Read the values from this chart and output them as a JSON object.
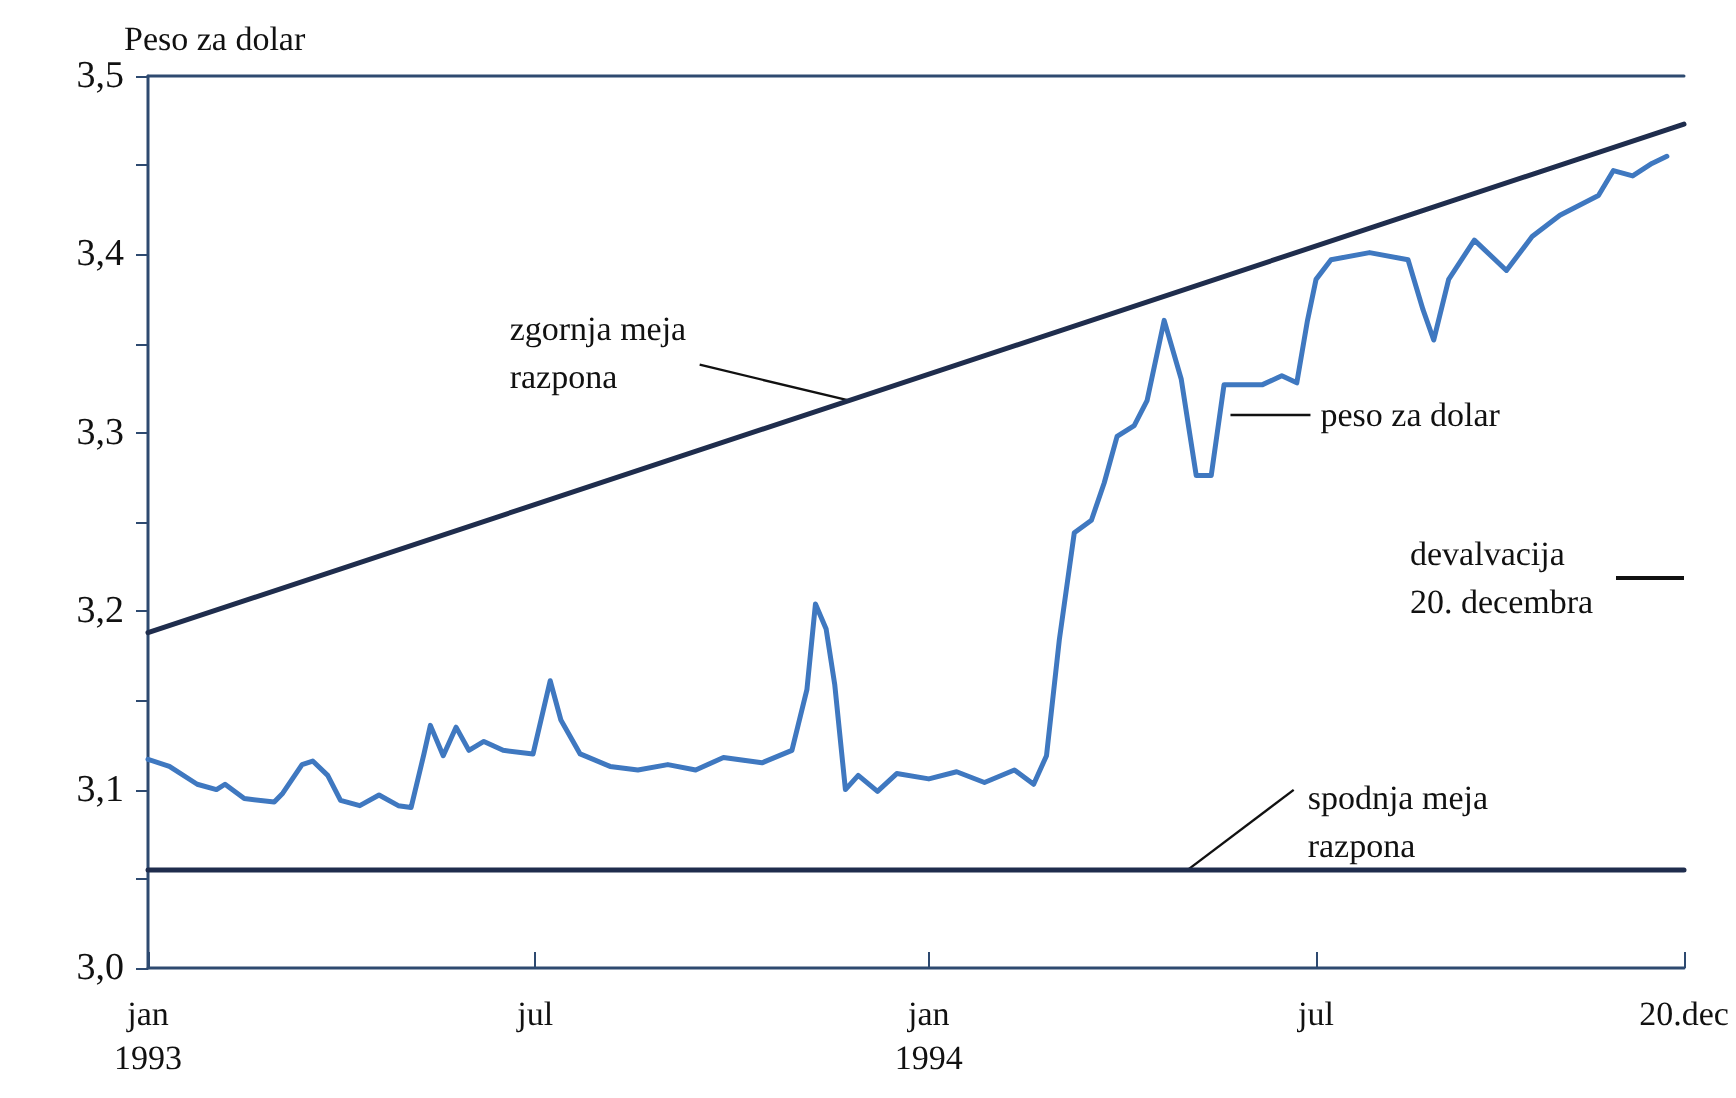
{
  "chart_data": {
    "type": "line",
    "ylabel": "Peso za dolar",
    "xlim": [
      "1993-01-01",
      "1994-12-20"
    ],
    "xticks": [
      {
        "value": "1993-01-01",
        "label": "jan\n1993"
      },
      {
        "value": "1993-07-01",
        "label": "jul"
      },
      {
        "value": "1994-01-01",
        "label": "jan\n1994"
      },
      {
        "value": "1994-07-01",
        "label": "jul"
      },
      {
        "value": "1994-12-20",
        "label": "20.dec"
      }
    ],
    "ylim": [
      3.0,
      3.5
    ],
    "yticks": [
      {
        "value": 3.0,
        "label": "3,0"
      },
      {
        "value": 3.05,
        "label": null
      },
      {
        "value": 3.1,
        "label": "3,1"
      },
      {
        "value": 3.15,
        "label": null
      },
      {
        "value": 3.2,
        "label": "3,2"
      },
      {
        "value": 3.25,
        "label": null
      },
      {
        "value": 3.3,
        "label": "3,3"
      },
      {
        "value": 3.35,
        "label": null
      },
      {
        "value": 3.4,
        "label": "3,4"
      },
      {
        "value": 3.45,
        "label": null
      },
      {
        "value": 3.5,
        "label": "3,5"
      }
    ],
    "series": [
      {
        "color": "#1f2d4d",
        "x": [
          "1993-01-01",
          "1994-12-20"
        ],
        "values": [
          3.188,
          3.473
        ]
      },
      {
        "color": "#1f2d4d",
        "x": [
          "1993-01-01",
          "1994-12-20"
        ],
        "values": [
          3.055,
          3.055
        ]
      },
      {
        "color": "#3f78c0",
        "x": [
          "1993-01-01",
          "1993-01-11",
          "1993-01-24",
          "1993-02-02",
          "1993-02-06",
          "1993-02-15",
          "1993-03-01",
          "1993-03-05",
          "1993-03-14",
          "1993-03-19",
          "1993-03-26",
          "1993-04-01",
          "1993-04-10",
          "1993-04-19",
          "1993-04-28",
          "1993-05-04",
          "1993-05-10",
          "1993-05-13",
          "1993-05-19",
          "1993-05-25",
          "1993-05-31",
          "1993-06-07",
          "1993-06-16",
          "1993-06-30",
          "1993-07-08",
          "1993-07-13",
          "1993-07-22",
          "1993-08-05",
          "1993-08-18",
          "1993-09-01",
          "1993-09-14",
          "1993-09-27",
          "1993-10-15",
          "1993-10-29",
          "1993-11-05",
          "1993-11-09",
          "1993-11-14",
          "1993-11-18",
          "1993-11-23",
          "1993-11-29",
          "1993-12-08",
          "1993-12-17",
          "1994-01-01",
          "1994-01-14",
          "1994-01-27",
          "1994-02-10",
          "1994-02-19",
          "1994-02-25",
          "1994-03-03",
          "1994-03-10",
          "1994-03-18",
          "1994-03-24",
          "1994-03-30",
          "1994-04-07",
          "1994-04-13",
          "1994-04-21",
          "1994-04-29",
          "1994-05-06",
          "1994-05-13",
          "1994-05-19",
          "1994-06-06",
          "1994-06-15",
          "1994-06-22",
          "1994-06-27",
          "1994-07-01",
          "1994-07-08",
          "1994-07-26",
          "1994-08-13",
          "1994-08-20",
          "1994-08-25",
          "1994-09-01",
          "1994-09-13",
          "1994-09-28",
          "1994-10-10",
          "1994-10-23",
          "1994-11-10",
          "1994-11-17",
          "1994-11-26",
          "1994-12-05",
          "1994-12-12"
        ],
        "values": [
          3.117,
          3.113,
          3.103,
          3.1,
          3.103,
          3.095,
          3.093,
          3.098,
          3.114,
          3.116,
          3.108,
          3.094,
          3.091,
          3.097,
          3.091,
          3.09,
          3.12,
          3.136,
          3.119,
          3.135,
          3.122,
          3.127,
          3.122,
          3.12,
          3.161,
          3.139,
          3.12,
          3.113,
          3.111,
          3.114,
          3.111,
          3.118,
          3.115,
          3.122,
          3.156,
          3.204,
          3.19,
          3.159,
          3.1,
          3.108,
          3.099,
          3.109,
          3.106,
          3.11,
          3.104,
          3.111,
          3.103,
          3.119,
          3.184,
          3.244,
          3.251,
          3.272,
          3.298,
          3.304,
          3.318,
          3.363,
          3.33,
          3.276,
          3.276,
          3.327,
          3.327,
          3.332,
          3.328,
          3.363,
          3.386,
          3.397,
          3.401,
          3.397,
          3.369,
          3.352,
          3.386,
          3.408,
          3.391,
          3.41,
          3.422,
          3.433,
          3.447,
          3.444,
          3.451,
          3.455
        ]
      }
    ],
    "annotations": [
      {
        "text": "zgornja meja\nrazpona",
        "x": "1993-11-25",
        "y": 3.318
      },
      {
        "text": "peso za dolar",
        "x": "1994-05-22",
        "y": 3.31
      },
      "devalvacija\n20. decembra",
      {
        "text": "spodnja meja\nrazpona",
        "x": "1994-05-02",
        "y": 3.055
      }
    ]
  }
}
